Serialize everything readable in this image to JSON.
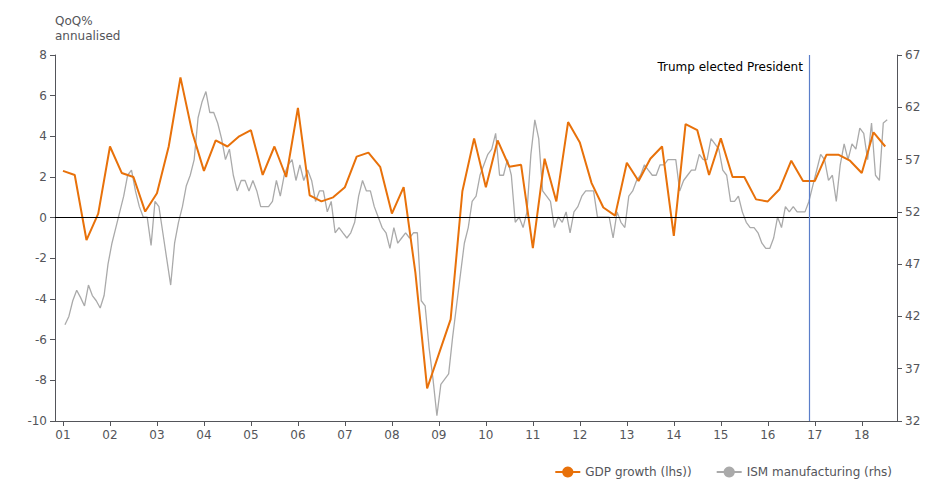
{
  "chart_data": {
    "type": "line",
    "ylabel": "QoQ%\nannualised",
    "xlim": [
      2000.83,
      2018.75
    ],
    "xticks": [
      {
        "value": 2001,
        "label": "01"
      },
      {
        "value": 2002,
        "label": "02"
      },
      {
        "value": 2003,
        "label": "03"
      },
      {
        "value": 2004,
        "label": "04"
      },
      {
        "value": 2005,
        "label": "05"
      },
      {
        "value": 2006,
        "label": "06"
      },
      {
        "value": 2007,
        "label": "07"
      },
      {
        "value": 2008,
        "label": "08"
      },
      {
        "value": 2009,
        "label": "09"
      },
      {
        "value": 2010,
        "label": "10"
      },
      {
        "value": 2011,
        "label": "11"
      },
      {
        "value": 2012,
        "label": "12"
      },
      {
        "value": 2013,
        "label": "13"
      },
      {
        "value": 2014,
        "label": "14"
      },
      {
        "value": 2015,
        "label": "15"
      },
      {
        "value": 2016,
        "label": "16"
      },
      {
        "value": 2017,
        "label": "17"
      },
      {
        "value": 2018,
        "label": "18"
      }
    ],
    "ylim": [
      -10,
      8
    ],
    "yticks": [
      -10,
      -8,
      -6,
      -4,
      -2,
      0,
      2,
      4,
      6,
      8
    ],
    "y2lim": [
      32,
      67
    ],
    "y2ticks": [
      32,
      37,
      42,
      47,
      52,
      57,
      62,
      67
    ],
    "grid": false,
    "legend": "lower right",
    "hline": 0,
    "annotations": [
      {
        "text": "Trump elected President",
        "x": 2016.875,
        "color": "#5B7EC9"
      }
    ],
    "series": [
      {
        "name": "GDP growth (lhs))",
        "color": "#E8710A",
        "x": [
          2001.0,
          2001.25,
          2001.5,
          2001.75,
          2002.0,
          2002.25,
          2002.5,
          2002.75,
          2003.0,
          2003.25,
          2003.5,
          2003.75,
          2004.0,
          2004.25,
          2004.5,
          2004.75,
          2005.0,
          2005.25,
          2005.5,
          2005.75,
          2006.0,
          2006.25,
          2006.5,
          2006.75,
          2007.0,
          2007.25,
          2007.5,
          2007.75,
          2008.0,
          2008.25,
          2008.5,
          2008.75,
          2009.0,
          2009.25,
          2009.5,
          2009.75,
          2010.0,
          2010.25,
          2010.5,
          2010.75,
          2011.0,
          2011.25,
          2011.5,
          2011.75,
          2012.0,
          2012.25,
          2012.5,
          2012.75,
          2013.0,
          2013.25,
          2013.5,
          2013.75,
          2014.0,
          2014.25,
          2014.5,
          2014.75,
          2015.0,
          2015.25,
          2015.5,
          2015.75,
          2016.0,
          2016.25,
          2016.5,
          2016.75,
          2017.0,
          2017.25,
          2017.5,
          2017.75,
          2018.0,
          2018.25,
          2018.5
        ],
        "values": [
          2.3,
          2.1,
          -1.1,
          0.2,
          3.5,
          2.2,
          2.0,
          0.3,
          1.2,
          3.5,
          6.9,
          4.2,
          2.3,
          3.8,
          3.5,
          4.0,
          4.3,
          2.1,
          3.5,
          2.0,
          5.4,
          1.1,
          0.8,
          1.0,
          1.5,
          3.0,
          3.2,
          2.5,
          0.2,
          1.5,
          -2.7,
          -8.4,
          -6.7,
          -5.0,
          1.3,
          3.9,
          1.5,
          3.8,
          2.5,
          2.6,
          -1.5,
          2.9,
          0.8,
          4.7,
          3.7,
          1.7,
          0.5,
          0.1,
          2.7,
          1.8,
          2.9,
          3.5,
          -0.9,
          4.6,
          4.3,
          2.1,
          3.9,
          2.0,
          2.0,
          0.9,
          0.8,
          1.4,
          2.8,
          1.8,
          1.8,
          3.1,
          3.1,
          2.8,
          2.2,
          4.2,
          3.5
        ]
      },
      {
        "name": "ISM manufacturing (rhs)",
        "color": "#AAAAAA",
        "axis": "y2",
        "x": [
          2001.0417,
          2001.125,
          2001.208,
          2001.292,
          2001.375,
          2001.458,
          2001.542,
          2001.625,
          2001.708,
          2001.792,
          2001.875,
          2001.958,
          2002.042,
          2002.125,
          2002.208,
          2002.292,
          2002.375,
          2002.458,
          2002.542,
          2002.625,
          2002.708,
          2002.792,
          2002.875,
          2002.958,
          2003.042,
          2003.125,
          2003.208,
          2003.292,
          2003.375,
          2003.458,
          2003.542,
          2003.625,
          2003.708,
          2003.792,
          2003.875,
          2003.958,
          2004.042,
          2004.125,
          2004.208,
          2004.292,
          2004.375,
          2004.458,
          2004.542,
          2004.625,
          2004.708,
          2004.792,
          2004.875,
          2004.958,
          2005.042,
          2005.125,
          2005.208,
          2005.292,
          2005.375,
          2005.458,
          2005.542,
          2005.625,
          2005.708,
          2005.792,
          2005.875,
          2005.958,
          2006.042,
          2006.125,
          2006.208,
          2006.292,
          2006.375,
          2006.458,
          2006.542,
          2006.625,
          2006.708,
          2006.792,
          2006.875,
          2006.958,
          2007.042,
          2007.125,
          2007.208,
          2007.292,
          2007.375,
          2007.458,
          2007.542,
          2007.625,
          2007.708,
          2007.792,
          2007.875,
          2007.958,
          2008.042,
          2008.125,
          2008.208,
          2008.292,
          2008.375,
          2008.458,
          2008.542,
          2008.625,
          2008.708,
          2008.792,
          2008.875,
          2008.958,
          2009.042,
          2009.125,
          2009.208,
          2009.292,
          2009.375,
          2009.458,
          2009.542,
          2009.625,
          2009.708,
          2009.792,
          2009.875,
          2009.958,
          2010.042,
          2010.125,
          2010.208,
          2010.292,
          2010.375,
          2010.458,
          2010.542,
          2010.625,
          2010.708,
          2010.792,
          2010.875,
          2010.958,
          2011.042,
          2011.125,
          2011.208,
          2011.292,
          2011.375,
          2011.458,
          2011.542,
          2011.625,
          2011.708,
          2011.792,
          2011.875,
          2011.958,
          2012.042,
          2012.125,
          2012.208,
          2012.292,
          2012.375,
          2012.458,
          2012.542,
          2012.625,
          2012.708,
          2012.792,
          2012.875,
          2012.958,
          2013.042,
          2013.125,
          2013.208,
          2013.292,
          2013.375,
          2013.458,
          2013.542,
          2013.625,
          2013.708,
          2013.792,
          2013.875,
          2013.958,
          2014.042,
          2014.125,
          2014.208,
          2014.292,
          2014.375,
          2014.458,
          2014.542,
          2014.625,
          2014.708,
          2014.792,
          2014.875,
          2014.958,
          2015.042,
          2015.125,
          2015.208,
          2015.292,
          2015.375,
          2015.458,
          2015.542,
          2015.625,
          2015.708,
          2015.792,
          2015.875,
          2015.958,
          2016.042,
          2016.125,
          2016.208,
          2016.292,
          2016.375,
          2016.458,
          2016.542,
          2016.625,
          2016.708,
          2016.792,
          2016.875,
          2016.958,
          2017.042,
          2017.125,
          2017.208,
          2017.292,
          2017.375,
          2017.458,
          2017.542,
          2017.625,
          2017.708,
          2017.792,
          2017.875,
          2017.958,
          2018.042,
          2018.125,
          2018.208,
          2018.292,
          2018.375,
          2018.458,
          2018.542
        ],
        "values": [
          41.2,
          42.0,
          43.5,
          44.5,
          43.8,
          43.0,
          45.0,
          44.0,
          43.5,
          42.8,
          44.0,
          47.0,
          49.0,
          50.5,
          52.0,
          53.5,
          55.5,
          56.0,
          54.0,
          52.5,
          51.5,
          51.5,
          48.8,
          53.0,
          52.5,
          50.0,
          47.5,
          45.0,
          49.0,
          51.0,
          52.5,
          54.5,
          55.5,
          57.0,
          61.0,
          62.5,
          63.5,
          61.5,
          61.5,
          60.5,
          59.0,
          57.0,
          58.0,
          55.5,
          54.0,
          55.0,
          55.0,
          54.0,
          55.0,
          54.0,
          52.5,
          52.5,
          52.5,
          53.0,
          55.0,
          53.5,
          55.5,
          56.5,
          57.0,
          55.0,
          56.5,
          55.0,
          56.0,
          55.0,
          53.0,
          54.0,
          54.0,
          52.0,
          53.0,
          50.0,
          50.5,
          50.0,
          49.5,
          50.0,
          51.0,
          53.5,
          55.0,
          54.0,
          54.0,
          52.5,
          51.5,
          50.5,
          50.0,
          48.5,
          50.5,
          49.0,
          49.5,
          50.0,
          49.5,
          50.0,
          50.0,
          43.5,
          43.0,
          39.0,
          36.0,
          32.5,
          35.5,
          36.0,
          36.5,
          40.0,
          43.0,
          46.0,
          49.0,
          50.5,
          53.0,
          53.5,
          55.5,
          56.5,
          57.5,
          58.0,
          59.5,
          55.5,
          55.5,
          57.0,
          55.5,
          51.0,
          51.5,
          50.5,
          52.0,
          57.5,
          60.8,
          59.0,
          54.0,
          53.5,
          53.0,
          50.5,
          51.5,
          51.0,
          52.0,
          50.0,
          52.0,
          52.5,
          53.5,
          54.0,
          54.0,
          54.0,
          51.5,
          51.5,
          51.5,
          51.5,
          49.5,
          52.0,
          51.0,
          50.5,
          53.5,
          54.0,
          55.0,
          55.5,
          56.5,
          56.0,
          55.5,
          55.5,
          56.5,
          56.5,
          57.0,
          57.0,
          57.0,
          54.0,
          55.0,
          55.5,
          56.0,
          56.0,
          57.5,
          57.0,
          57.0,
          59.0,
          58.5,
          58.0,
          56.0,
          55.5,
          53.0,
          53.0,
          53.5,
          52.0,
          51.0,
          50.5,
          50.5,
          50.0,
          49.0,
          48.5,
          48.5,
          49.5,
          51.5,
          50.5,
          52.5,
          52.0,
          52.5,
          52.0,
          52.0,
          52.0,
          53.0,
          54.5,
          56.0,
          57.5,
          57.0,
          55.0,
          55.5,
          53.0,
          56.5,
          58.5,
          57.0,
          58.5,
          58.0,
          60.0,
          59.5,
          57.0,
          60.5,
          55.5,
          55.0,
          60.5,
          60.8
        ]
      }
    ]
  }
}
